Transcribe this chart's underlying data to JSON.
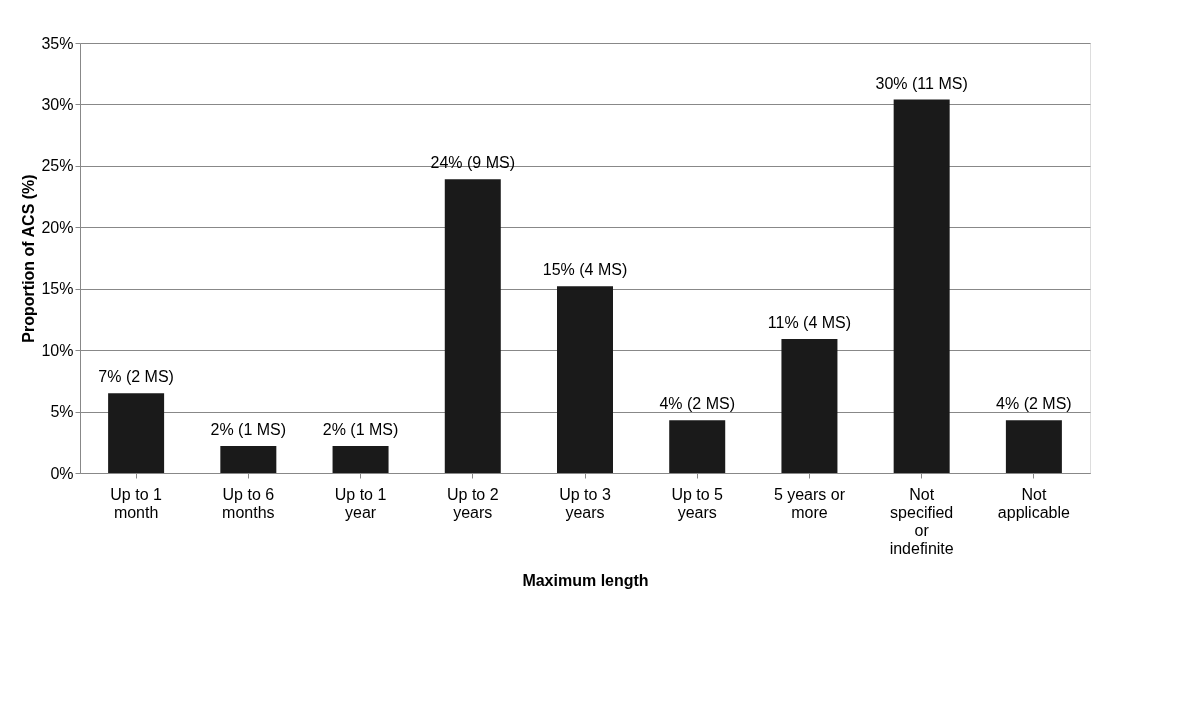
{
  "chart_data": {
    "type": "bar",
    "xlabel": "Maximum length",
    "ylabel": "Proportion  of ACS (%)",
    "categories": [
      "Up to 1 month",
      "Up to 6 months",
      "Up to 1 year",
      "Up to 2 years",
      "Up to 3 years",
      "Up to 5 years",
      "5 years or more",
      "Not specified or indefinite",
      "Not applicable"
    ],
    "values": [
      6.5,
      2.2,
      2.2,
      23.9,
      15.2,
      4.3,
      10.9,
      30.4,
      4.3
    ],
    "value_labels": [
      "7% (2 MS)",
      "2% (1 MS)",
      "2% (1 MS)",
      "24% (9 MS)",
      "15% (4 MS)",
      "4% (2 MS)",
      "11% (4 MS)",
      "30% (11 MS)",
      "4% (2 MS)"
    ],
    "color": "#1a1a1a",
    "ylim": [
      0,
      35
    ],
    "yticks": [
      {
        "value": 0,
        "label": "0%"
      },
      {
        "value": 5,
        "label": "5%"
      },
      {
        "value": 10,
        "label": "10%"
      },
      {
        "value": 15,
        "label": "15%"
      },
      {
        "value": 20,
        "label": "20%"
      },
      {
        "value": 25,
        "label": "25%"
      },
      {
        "value": 30,
        "label": "30%"
      },
      {
        "value": 35,
        "label": "35%"
      }
    ],
    "grid": "y"
  }
}
